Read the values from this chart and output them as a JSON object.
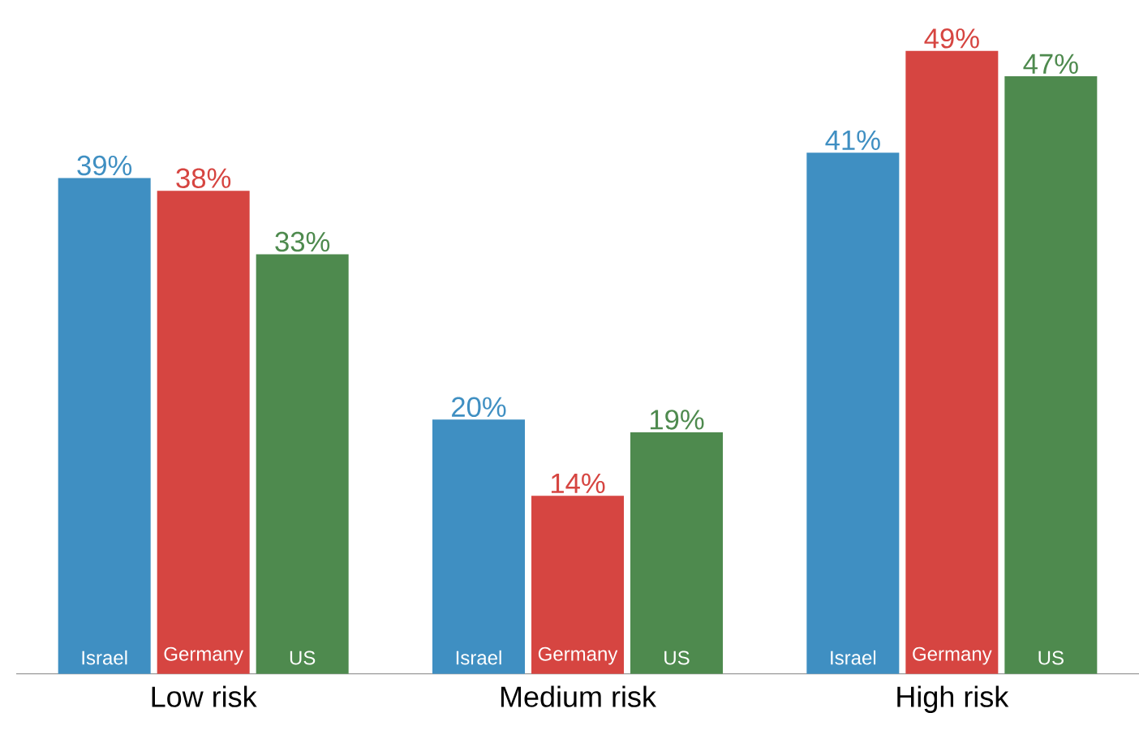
{
  "chart_data": {
    "type": "bar",
    "categories": [
      "Low risk",
      "Medium risk",
      "High risk"
    ],
    "series": [
      {
        "name": "Israel",
        "color": "#3f8fc2",
        "values": [
          39,
          20,
          41
        ],
        "value_labels": [
          "39%",
          "20%",
          "41%"
        ]
      },
      {
        "name": "Germany",
        "color": "#d64541",
        "values": [
          38,
          14,
          49
        ],
        "value_labels": [
          "38%",
          "14%",
          "49%"
        ]
      },
      {
        "name": "US",
        "color": "#4e8a4e",
        "values": [
          33,
          19,
          47
        ],
        "value_labels": [
          "33%",
          "19%",
          "47%"
        ]
      }
    ]
  }
}
